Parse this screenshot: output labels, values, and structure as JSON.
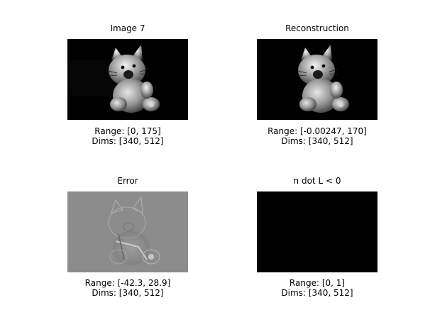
{
  "panels": [
    {
      "title": "Image 7",
      "range": "Range: [0, 175]",
      "dims": "Dims: [340, 512]",
      "image": "cat-figurine-photo"
    },
    {
      "title": "Reconstruction",
      "range": "Range: [-0.00247, 170]",
      "dims": "Dims: [340, 512]",
      "image": "cat-figurine-reconstruction"
    },
    {
      "title": "Error",
      "range": "Range: [-42.3, 28.9]",
      "dims": "Dims: [340, 512]",
      "image": "cat-figurine-error-map"
    },
    {
      "title": "n dot L < 0",
      "range": "Range: [0, 1]",
      "dims": "Dims: [340, 512]",
      "image": "all-black-mask"
    }
  ],
  "colors": {
    "background": "#ffffff",
    "image_black": "#000000",
    "error_gray": "#8c8c8c"
  }
}
